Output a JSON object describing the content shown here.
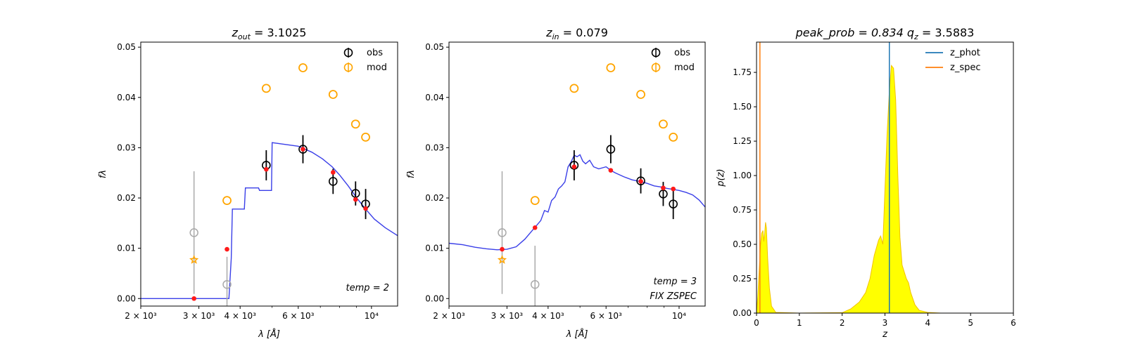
{
  "chart_data": [
    {
      "type": "scatter",
      "title": "z_out = 3.1025",
      "title_parts": {
        "var": "z",
        "sub": "out",
        "rest": " = 3.1025"
      },
      "xlabel": "λ [Å]",
      "ylabel": "fλ",
      "x_scale": "log",
      "xlim": [
        2000,
        12000
      ],
      "ylim": [
        -0.0015,
        0.051
      ],
      "x_ticks": [
        {
          "v": 2000,
          "label": "2 × 10³"
        },
        {
          "v": 3000,
          "label": "3 × 10³"
        },
        {
          "v": 4000,
          "label": "4 × 10³"
        },
        {
          "v": 6000,
          "label": "6 × 10³"
        },
        {
          "v": 10000,
          "label": "10⁴"
        }
      ],
      "y_ticks": [
        {
          "v": 0.0,
          "label": "0.00"
        },
        {
          "v": 0.01,
          "label": "0.01"
        },
        {
          "v": 0.02,
          "label": "0.02"
        },
        {
          "v": 0.03,
          "label": "0.03"
        },
        {
          "v": 0.04,
          "label": "0.04"
        },
        {
          "v": 0.05,
          "label": "0.05"
        }
      ],
      "legend": {
        "position": "top-right",
        "entries": [
          {
            "label": "obs",
            "color": "#000000"
          },
          {
            "label": "mod",
            "color": "#ffa500"
          }
        ]
      },
      "note_lines": [
        "temp = 2"
      ],
      "obs": [
        {
          "x": 4800,
          "y": 0.0265,
          "err": 0.003
        },
        {
          "x": 6200,
          "y": 0.0297,
          "err": 0.0028
        },
        {
          "x": 7650,
          "y": 0.0233,
          "err": 0.0025
        },
        {
          "x": 8950,
          "y": 0.0209,
          "err": 0.0024
        },
        {
          "x": 9600,
          "y": 0.0188,
          "err": 0.003
        }
      ],
      "obs_grey": [
        {
          "x": 2900,
          "y": 0.0131,
          "err": 0.0122
        },
        {
          "x": 3650,
          "y": 0.0028,
          "err": 0.0055
        }
      ],
      "mod": [
        {
          "x": 2900,
          "y": 0.0077,
          "marker": "star"
        },
        {
          "x": 3650,
          "y": 0.0195
        },
        {
          "x": 4800,
          "y": 0.0418
        },
        {
          "x": 6200,
          "y": 0.0459
        },
        {
          "x": 7650,
          "y": 0.0406
        },
        {
          "x": 8950,
          "y": 0.0347
        },
        {
          "x": 9600,
          "y": 0.0321
        }
      ],
      "red_points": [
        {
          "x": 2900,
          "y": 0.0
        },
        {
          "x": 3650,
          "y": 0.0098
        },
        {
          "x": 4800,
          "y": 0.0257
        },
        {
          "x": 6200,
          "y": 0.0297
        },
        {
          "x": 7650,
          "y": 0.0251
        },
        {
          "x": 8950,
          "y": 0.0197
        },
        {
          "x": 9600,
          "y": 0.0179
        }
      ],
      "sed": [
        [
          2000,
          0.0
        ],
        [
          3700,
          0.0
        ],
        [
          3760,
          0.008
        ],
        [
          3790,
          0.0178
        ],
        [
          4120,
          0.0178
        ],
        [
          4150,
          0.022
        ],
        [
          4550,
          0.022
        ],
        [
          4580,
          0.0215
        ],
        [
          4980,
          0.0215
        ],
        [
          5000,
          0.031
        ],
        [
          6000,
          0.0303
        ],
        [
          6600,
          0.0291
        ],
        [
          7100,
          0.0278
        ],
        [
          7600,
          0.0262
        ],
        [
          8000,
          0.0246
        ],
        [
          8500,
          0.0224
        ],
        [
          9000,
          0.0201
        ],
        [
          9600,
          0.0178
        ],
        [
          10200,
          0.0158
        ],
        [
          11000,
          0.0141
        ],
        [
          12000,
          0.0125
        ]
      ]
    },
    {
      "type": "scatter",
      "title": "z_in = 0.079",
      "title_parts": {
        "var": "z",
        "sub": "in",
        "rest": " = 0.079"
      },
      "xlabel": "λ [Å]",
      "ylabel": "fλ",
      "x_scale": "log",
      "xlim": [
        2000,
        12000
      ],
      "ylim": [
        -0.0015,
        0.051
      ],
      "x_ticks": [
        {
          "v": 2000,
          "label": "2 × 10³"
        },
        {
          "v": 3000,
          "label": "3 × 10³"
        },
        {
          "v": 4000,
          "label": "4 × 10³"
        },
        {
          "v": 6000,
          "label": "6 × 10³"
        },
        {
          "v": 10000,
          "label": "10⁴"
        }
      ],
      "y_ticks": [
        {
          "v": 0.0,
          "label": "0.00"
        },
        {
          "v": 0.01,
          "label": "0.01"
        },
        {
          "v": 0.02,
          "label": "0.02"
        },
        {
          "v": 0.03,
          "label": "0.03"
        },
        {
          "v": 0.04,
          "label": "0.04"
        },
        {
          "v": 0.05,
          "label": "0.05"
        }
      ],
      "legend": {
        "position": "top-right",
        "entries": [
          {
            "label": "obs",
            "color": "#000000"
          },
          {
            "label": "mod",
            "color": "#ffa500"
          }
        ]
      },
      "note_lines": [
        "temp = 3",
        "FIX ZSPEC"
      ],
      "obs": [
        {
          "x": 4800,
          "y": 0.0265,
          "err": 0.003
        },
        {
          "x": 6200,
          "y": 0.0297,
          "err": 0.0028
        },
        {
          "x": 7650,
          "y": 0.0234,
          "err": 0.0025
        },
        {
          "x": 8950,
          "y": 0.0208,
          "err": 0.0024
        },
        {
          "x": 9600,
          "y": 0.0188,
          "err": 0.003
        }
      ],
      "obs_grey": [
        {
          "x": 2900,
          "y": 0.0131,
          "err": 0.0122
        },
        {
          "x": 3650,
          "y": 0.0028,
          "err": 0.0077
        }
      ],
      "mod": [
        {
          "x": 2900,
          "y": 0.0077,
          "marker": "star"
        },
        {
          "x": 3650,
          "y": 0.0195
        },
        {
          "x": 4800,
          "y": 0.0418
        },
        {
          "x": 6200,
          "y": 0.0459
        },
        {
          "x": 7650,
          "y": 0.0406
        },
        {
          "x": 8950,
          "y": 0.0347
        },
        {
          "x": 9600,
          "y": 0.0321
        }
      ],
      "red_points": [
        {
          "x": 2900,
          "y": 0.0098
        },
        {
          "x": 3650,
          "y": 0.0141
        },
        {
          "x": 4800,
          "y": 0.0262
        },
        {
          "x": 6200,
          "y": 0.0255
        },
        {
          "x": 7650,
          "y": 0.0233
        },
        {
          "x": 8950,
          "y": 0.022
        },
        {
          "x": 9600,
          "y": 0.0218
        }
      ],
      "sed": [
        [
          2000,
          0.011
        ],
        [
          2200,
          0.0107
        ],
        [
          2400,
          0.0102
        ],
        [
          2600,
          0.0099
        ],
        [
          2800,
          0.0097
        ],
        [
          3000,
          0.0098
        ],
        [
          3200,
          0.0103
        ],
        [
          3400,
          0.0118
        ],
        [
          3600,
          0.0137
        ],
        [
          3800,
          0.0155
        ],
        [
          3900,
          0.0175
        ],
        [
          4000,
          0.0172
        ],
        [
          4100,
          0.0195
        ],
        [
          4200,
          0.0202
        ],
        [
          4300,
          0.0218
        ],
        [
          4400,
          0.0224
        ],
        [
          4500,
          0.0232
        ],
        [
          4600,
          0.0262
        ],
        [
          4700,
          0.0272
        ],
        [
          4800,
          0.0285
        ],
        [
          4900,
          0.0282
        ],
        [
          5000,
          0.0286
        ],
        [
          5100,
          0.0273
        ],
        [
          5200,
          0.0268
        ],
        [
          5350,
          0.0275
        ],
        [
          5500,
          0.0262
        ],
        [
          5700,
          0.0258
        ],
        [
          6000,
          0.0262
        ],
        [
          6200,
          0.0255
        ],
        [
          6400,
          0.025
        ],
        [
          6800,
          0.0242
        ],
        [
          7200,
          0.0236
        ],
        [
          7600,
          0.0233
        ],
        [
          8000,
          0.0229
        ],
        [
          8400,
          0.0224
        ],
        [
          8800,
          0.0222
        ],
        [
          9200,
          0.0219
        ],
        [
          9600,
          0.0217
        ],
        [
          10000,
          0.0215
        ],
        [
          10500,
          0.0211
        ],
        [
          11000,
          0.0206
        ],
        [
          11500,
          0.0196
        ],
        [
          12000,
          0.0182
        ]
      ]
    },
    {
      "type": "area",
      "title": "peak_prob = 0.834     q_z = 3.5883",
      "title_parts": {
        "left": "peak_prob = 0.834",
        "right_var": "q",
        "right_sub": "z",
        "right_rest": " = 3.5883"
      },
      "xlabel": "z",
      "ylabel": "p(z)",
      "xlim": [
        0,
        6
      ],
      "ylim": [
        0,
        1.97
      ],
      "x_ticks": [
        {
          "v": 0,
          "label": "0"
        },
        {
          "v": 1,
          "label": "1"
        },
        {
          "v": 2,
          "label": "2"
        },
        {
          "v": 3,
          "label": "3"
        },
        {
          "v": 4,
          "label": "4"
        },
        {
          "v": 5,
          "label": "5"
        },
        {
          "v": 6,
          "label": "6"
        }
      ],
      "y_ticks": [
        {
          "v": 0.0,
          "label": "0.00"
        },
        {
          "v": 0.25,
          "label": "0.25"
        },
        {
          "v": 0.5,
          "label": "0.50"
        },
        {
          "v": 0.75,
          "label": "0.75"
        },
        {
          "v": 1.0,
          "label": "1.00"
        },
        {
          "v": 1.25,
          "label": "1.25"
        },
        {
          "v": 1.5,
          "label": "1.50"
        },
        {
          "v": 1.75,
          "label": "1.75"
        }
      ],
      "legend": {
        "position": "top-right",
        "entries": [
          {
            "label": "z_phot",
            "color": "#1f77b4"
          },
          {
            "label": "z_spec",
            "color": "#ff7f0e"
          }
        ]
      },
      "z_phot": 3.1025,
      "z_spec": 0.079,
      "pdf": [
        [
          0.0,
          0.0
        ],
        [
          0.03,
          0.12
        ],
        [
          0.06,
          0.3
        ],
        [
          0.09,
          0.48
        ],
        [
          0.12,
          0.58
        ],
        [
          0.15,
          0.6
        ],
        [
          0.17,
          0.52
        ],
        [
          0.19,
          0.58
        ],
        [
          0.21,
          0.66
        ],
        [
          0.23,
          0.62
        ],
        [
          0.26,
          0.4
        ],
        [
          0.3,
          0.18
        ],
        [
          0.35,
          0.05
        ],
        [
          0.45,
          0.005
        ],
        [
          1.0,
          0.0
        ],
        [
          2.0,
          0.003
        ],
        [
          2.2,
          0.03
        ],
        [
          2.4,
          0.08
        ],
        [
          2.55,
          0.15
        ],
        [
          2.65,
          0.25
        ],
        [
          2.75,
          0.42
        ],
        [
          2.85,
          0.53
        ],
        [
          2.9,
          0.56
        ],
        [
          2.95,
          0.5
        ],
        [
          3.0,
          0.9
        ],
        [
          3.05,
          1.3
        ],
        [
          3.1,
          1.6
        ],
        [
          3.15,
          1.8
        ],
        [
          3.2,
          1.78
        ],
        [
          3.25,
          1.55
        ],
        [
          3.3,
          1.0
        ],
        [
          3.35,
          0.55
        ],
        [
          3.4,
          0.35
        ],
        [
          3.5,
          0.25
        ],
        [
          3.55,
          0.22
        ],
        [
          3.6,
          0.15
        ],
        [
          3.7,
          0.06
        ],
        [
          3.8,
          0.02
        ],
        [
          4.0,
          0.005
        ],
        [
          4.3,
          0.0
        ],
        [
          5.0,
          0.0
        ]
      ]
    }
  ]
}
